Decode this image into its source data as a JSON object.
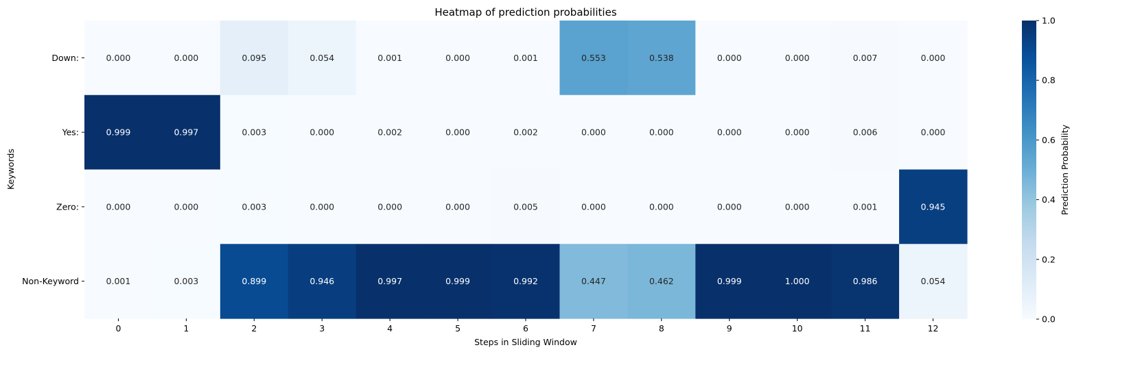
{
  "chart_data": {
    "type": "heatmap",
    "title": "Heatmap of prediction probabilities",
    "xlabel": "Steps in Sliding Window",
    "ylabel": "Keywords",
    "colorbar_label": "Prediction Probability",
    "x_categories": [
      "0",
      "1",
      "2",
      "3",
      "4",
      "5",
      "6",
      "7",
      "8",
      "9",
      "10",
      "11",
      "12"
    ],
    "y_categories": [
      "Down:",
      "Yes:",
      "Zero:",
      "Non-Keyword"
    ],
    "values": [
      [
        0.0,
        0.0,
        0.095,
        0.054,
        0.001,
        0.0,
        0.001,
        0.553,
        0.538,
        0.0,
        0.0,
        0.007,
        0.0
      ],
      [
        0.999,
        0.997,
        0.003,
        0.0,
        0.002,
        0.0,
        0.002,
        0.0,
        0.0,
        0.0,
        0.0,
        0.006,
        0.0
      ],
      [
        0.0,
        0.0,
        0.003,
        0.0,
        0.0,
        0.0,
        0.005,
        0.0,
        0.0,
        0.0,
        0.0,
        0.001,
        0.945
      ],
      [
        0.001,
        0.003,
        0.899,
        0.946,
        0.997,
        0.999,
        0.992,
        0.447,
        0.462,
        0.999,
        1.0,
        0.986,
        0.054
      ]
    ],
    "value_labels": [
      [
        "0.000",
        "0.000",
        "0.095",
        "0.054",
        "0.001",
        "0.000",
        "0.001",
        "0.553",
        "0.538",
        "0.000",
        "0.000",
        "0.007",
        "0.000"
      ],
      [
        "0.999",
        "0.997",
        "0.003",
        "0.000",
        "0.002",
        "0.000",
        "0.002",
        "0.000",
        "0.000",
        "0.000",
        "0.000",
        "0.006",
        "0.000"
      ],
      [
        "0.000",
        "0.000",
        "0.003",
        "0.000",
        "0.000",
        "0.000",
        "0.005",
        "0.000",
        "0.000",
        "0.000",
        "0.000",
        "0.001",
        "0.945"
      ],
      [
        "0.001",
        "0.003",
        "0.899",
        "0.946",
        "0.997",
        "0.999",
        "0.992",
        "0.447",
        "0.462",
        "0.999",
        "1.000",
        "0.986",
        "0.054"
      ]
    ],
    "colorbar_ticks": [
      "0.0",
      "0.2",
      "0.4",
      "0.6",
      "0.8",
      "1.0"
    ],
    "vlim": [
      0,
      1
    ],
    "colormap": "Blues",
    "colormap_stops": [
      "#f7fbff",
      "#deebf7",
      "#c6dbef",
      "#9ecae1",
      "#6baed6",
      "#4292c6",
      "#2171b5",
      "#08519c",
      "#08306b"
    ],
    "grid": false,
    "legend": "colorbar-right"
  }
}
